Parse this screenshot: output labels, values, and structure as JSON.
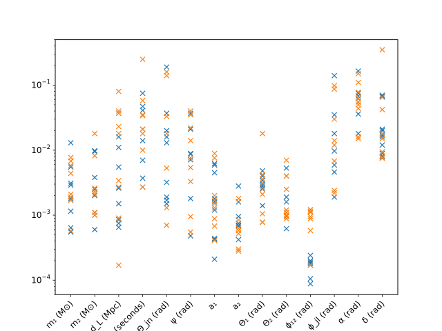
{
  "chart_data": {
    "type": "scatter",
    "marker": "x",
    "yscale": "log",
    "ylim": [
      6e-05,
      0.5
    ],
    "yticks": [
      {
        "value": 0.0001,
        "base": "10",
        "exp": "−4"
      },
      {
        "value": 0.001,
        "base": "10",
        "exp": "−3"
      },
      {
        "value": 0.01,
        "base": "10",
        "exp": "−2"
      },
      {
        "value": 0.1,
        "base": "10",
        "exp": "−1"
      }
    ],
    "categories": [
      "m₁ (M⊙)",
      "m₂ (M⊙)",
      "d_L (Mpc)",
      "t_c (seconds)",
      "Θ_jn (rad)",
      "ψ (rad)",
      "a₁",
      "a₂",
      "Θ₁ (rad)",
      "Θ₂ (rad)",
      "ϕ₁₂ (rad)",
      "ϕ_jl (rad)",
      "α (rad)",
      "δ (rad)"
    ],
    "series": [
      {
        "color": "#1f77b4",
        "values": [
          [
            0.013,
            0.0055,
            0.0031,
            0.0029,
            0.0018,
            0.0017,
            0.00115,
            0.00064,
            0.00055
          ],
          [
            0.0098,
            0.0095,
            0.0038,
            0.0025,
            0.002,
            0.0011,
            0.001,
            0.0006
          ],
          [
            0.037,
            0.016,
            0.011,
            0.0055,
            0.0026,
            0.0015,
            0.00085,
            0.00075,
            0.00065
          ],
          [
            0.075,
            0.047,
            0.041,
            0.021,
            0.014,
            0.007,
            0.0037,
            0.0027
          ],
          [
            0.19,
            0.037,
            0.02,
            0.016,
            0.013,
            0.0032,
            0.0019,
            0.0017,
            0.0015
          ],
          [
            0.037,
            0.021,
            0.0089,
            0.0087,
            0.0071,
            0.0018,
            0.00048
          ],
          [
            0.0062,
            0.0059,
            0.0045,
            0.0018,
            0.0016,
            0.0012,
            0.00044,
            0.00042,
            0.00021
          ],
          [
            0.0028,
            0.0016,
            0.00095,
            0.00075,
            0.0007,
            0.00068,
            0.00042
          ],
          [
            0.0048,
            0.004,
            0.0034,
            0.003,
            0.0028,
            0.0026,
            0.0014,
            0.00078
          ],
          [
            0.0053,
            0.004,
            0.0019,
            0.0016,
            0.0011,
            0.00098,
            0.00062
          ],
          [
            0.00024,
            0.0002,
            0.00019,
            0.00018,
            0.00017,
            0.000105,
            8.8e-05
          ],
          [
            0.14,
            0.035,
            0.018,
            0.0097,
            0.0059,
            0.0046,
            0.0019
          ],
          [
            0.165,
            0.075,
            0.068,
            0.062,
            0.055,
            0.036,
            0.018
          ],
          [
            0.07,
            0.068,
            0.021,
            0.02,
            0.017,
            0.016,
            0.012,
            0.0089,
            0.0081
          ]
        ]
      },
      {
        "color": "#ff7f0e",
        "values": [
          [
            0.0077,
            0.0068,
            0.0058,
            0.0044,
            0.0021,
            0.0019,
            0.0017,
            0.00057
          ],
          [
            0.018,
            0.0082,
            0.0026,
            0.0023,
            0.0021,
            0.0011,
            0.001
          ],
          [
            0.08,
            0.04,
            0.037,
            0.023,
            0.018,
            0.0034,
            0.0027,
            0.0009,
            0.00017
          ],
          [
            0.25,
            0.058,
            0.035,
            0.034,
            0.021,
            0.018,
            0.01,
            0.0027
          ],
          [
            0.16,
            0.14,
            0.033,
            0.018,
            0.0053,
            0.0013,
            0.0007
          ],
          [
            0.04,
            0.035,
            0.022,
            0.014,
            0.0076,
            0.0054,
            0.0033,
            0.00095,
            0.00055
          ],
          [
            0.0089,
            0.0076,
            0.002,
            0.0017,
            0.0015,
            0.0013,
            0.00088,
            0.00068,
            0.00041
          ],
          [
            0.0018,
            0.00085,
            0.00063,
            0.00058,
            0.00052,
            0.0003,
            0.00028
          ],
          [
            0.018,
            0.0042,
            0.0036,
            0.0031,
            0.0025,
            0.0021,
            0.00105,
            0.00078
          ],
          [
            0.007,
            0.004,
            0.0025,
            0.0012,
            0.0011,
            0.001,
            0.00098,
            0.00095,
            0.00088
          ],
          [
            0.00122,
            0.00115,
            0.0011,
            0.00095,
            0.00088,
            0.00058,
            0.00017
          ],
          [
            0.098,
            0.087,
            0.03,
            0.014,
            0.012,
            0.0068,
            0.0024,
            0.0022
          ],
          [
            0.15,
            0.11,
            0.078,
            0.063,
            0.055,
            0.05,
            0.044,
            0.016,
            0.015
          ],
          [
            0.35,
            0.065,
            0.042,
            0.018,
            0.015,
            0.0094,
            0.0078,
            0.0075
          ]
        ]
      }
    ]
  }
}
